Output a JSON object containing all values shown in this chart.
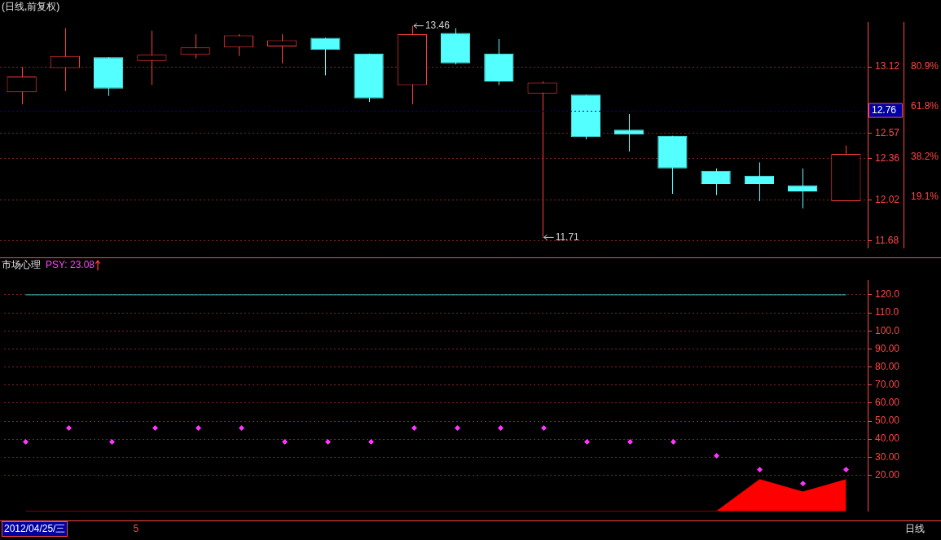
{
  "chart_data": [
    {
      "type": "candlestick",
      "title": "(日线,前复权)",
      "categories": [
        null,
        null,
        null,
        null,
        null,
        null,
        null,
        null,
        null,
        null,
        null,
        null,
        null,
        null,
        null,
        null,
        null,
        null,
        null,
        null
      ],
      "ohlc": [
        [
          12.91,
          13.12,
          12.81,
          13.04
        ],
        [
          13.11,
          13.44,
          12.92,
          13.21
        ],
        [
          13.2,
          13.2,
          12.88,
          12.94
        ],
        [
          13.17,
          13.42,
          12.97,
          13.22
        ],
        [
          13.22,
          13.39,
          13.19,
          13.28
        ],
        [
          13.28,
          13.39,
          13.21,
          13.38
        ],
        [
          13.29,
          13.39,
          13.15,
          13.34
        ],
        [
          13.36,
          13.36,
          13.05,
          13.26
        ],
        [
          13.23,
          13.23,
          12.83,
          12.86
        ],
        [
          12.97,
          13.46,
          12.81,
          13.39
        ],
        [
          13.4,
          13.44,
          13.14,
          13.15
        ],
        [
          13.23,
          13.35,
          12.97,
          13.0
        ],
        [
          12.9,
          13.0,
          11.71,
          12.99
        ],
        [
          12.89,
          12.89,
          12.52,
          12.54
        ],
        [
          12.6,
          12.73,
          12.42,
          12.56
        ],
        [
          12.55,
          12.55,
          12.07,
          12.28
        ],
        [
          12.26,
          12.28,
          12.06,
          12.15
        ],
        [
          12.22,
          12.33,
          12.01,
          12.15
        ],
        [
          12.14,
          12.28,
          11.95,
          12.09
        ],
        [
          12.01,
          12.47,
          12.01,
          12.4
        ]
      ],
      "colors": [
        "#ff3c3c",
        "#ff3c3c",
        "#54ffff",
        "#ff3c3c",
        "#ff3c3c",
        "#ff3c3c",
        "#ff3c3c",
        "#54ffff",
        "#54ffff",
        "#ff3c3c",
        "#54ffff",
        "#54ffff",
        "#ff3c3c",
        "#54ffff",
        "#54ffff",
        "#54ffff",
        "#54ffff",
        "#54ffff",
        "#54ffff",
        "#ff3c3c"
      ],
      "ylim": [
        11.62,
        13.49
      ],
      "yticks": [
        13.12,
        12.57,
        12.36,
        12.02,
        11.68
      ],
      "y2lim": [
        -5.1,
        101.7
      ],
      "y2ticks": [
        {
          "value": 80.9,
          "label": "80.9%"
        },
        {
          "value": 61.8,
          "label": "61.8%"
        },
        {
          "value": 38.2,
          "label": "38.2%"
        },
        {
          "value": 19.1,
          "label": "19.1%"
        }
      ],
      "ref_lines": [
        {
          "axis": "y",
          "value": 12.76,
          "label": "12.76",
          "color": "#0000a8"
        }
      ],
      "annotations": [
        "13.46",
        "11.71"
      ],
      "grid": "y"
    },
    {
      "type": "line",
      "title": "市场心理",
      "subtitle": "PSY: 23.08",
      "categories": [
        null,
        null,
        null,
        null,
        null,
        null,
        null,
        null,
        null,
        null,
        null,
        null,
        null,
        null,
        null,
        null,
        null,
        null,
        null,
        null
      ],
      "series": [
        {
          "type": "scatter",
          "color": "#ff33ff",
          "marker": "diamond",
          "values": [
            38.5,
            46.2,
            38.5,
            46.2,
            46.2,
            46.2,
            38.5,
            38.5,
            38.5,
            46.2,
            46.2,
            46.2,
            46.2,
            38.5,
            38.5,
            38.5,
            30.8,
            23.1,
            15.4,
            23.1
          ]
        },
        {
          "type": "area",
          "color": "#ff0000",
          "values": [
            0,
            0,
            0,
            0,
            0,
            0,
            0,
            0,
            0,
            0,
            0,
            0,
            0,
            0,
            0,
            0,
            0,
            17.6,
            10.7,
            17.6
          ]
        },
        {
          "type": "line",
          "color": "#33cccc",
          "values": [
            120,
            120,
            120,
            120,
            120,
            120,
            120,
            120,
            120,
            120,
            120,
            120,
            120,
            120,
            120,
            120,
            120,
            120,
            120,
            120
          ]
        }
      ],
      "ylim": [
        0,
        128
      ],
      "yticks": [
        {
          "value": 20,
          "label": "20.00"
        },
        {
          "value": 30,
          "label": "30.00"
        },
        {
          "value": 40,
          "label": "40.00"
        },
        {
          "value": 50,
          "label": "50.00"
        },
        {
          "value": 60,
          "label": "60.00"
        },
        {
          "value": 70,
          "label": "70.00"
        },
        {
          "value": 80,
          "label": "80.00"
        },
        {
          "value": 90,
          "label": "90.00"
        },
        {
          "value": 100,
          "label": "100.0"
        },
        {
          "value": 110,
          "label": "110.0"
        },
        {
          "value": 120,
          "label": "120.0"
        }
      ],
      "grid": "y",
      "annotations": [
        "2012/04/25/三",
        "5",
        "日线"
      ]
    }
  ]
}
